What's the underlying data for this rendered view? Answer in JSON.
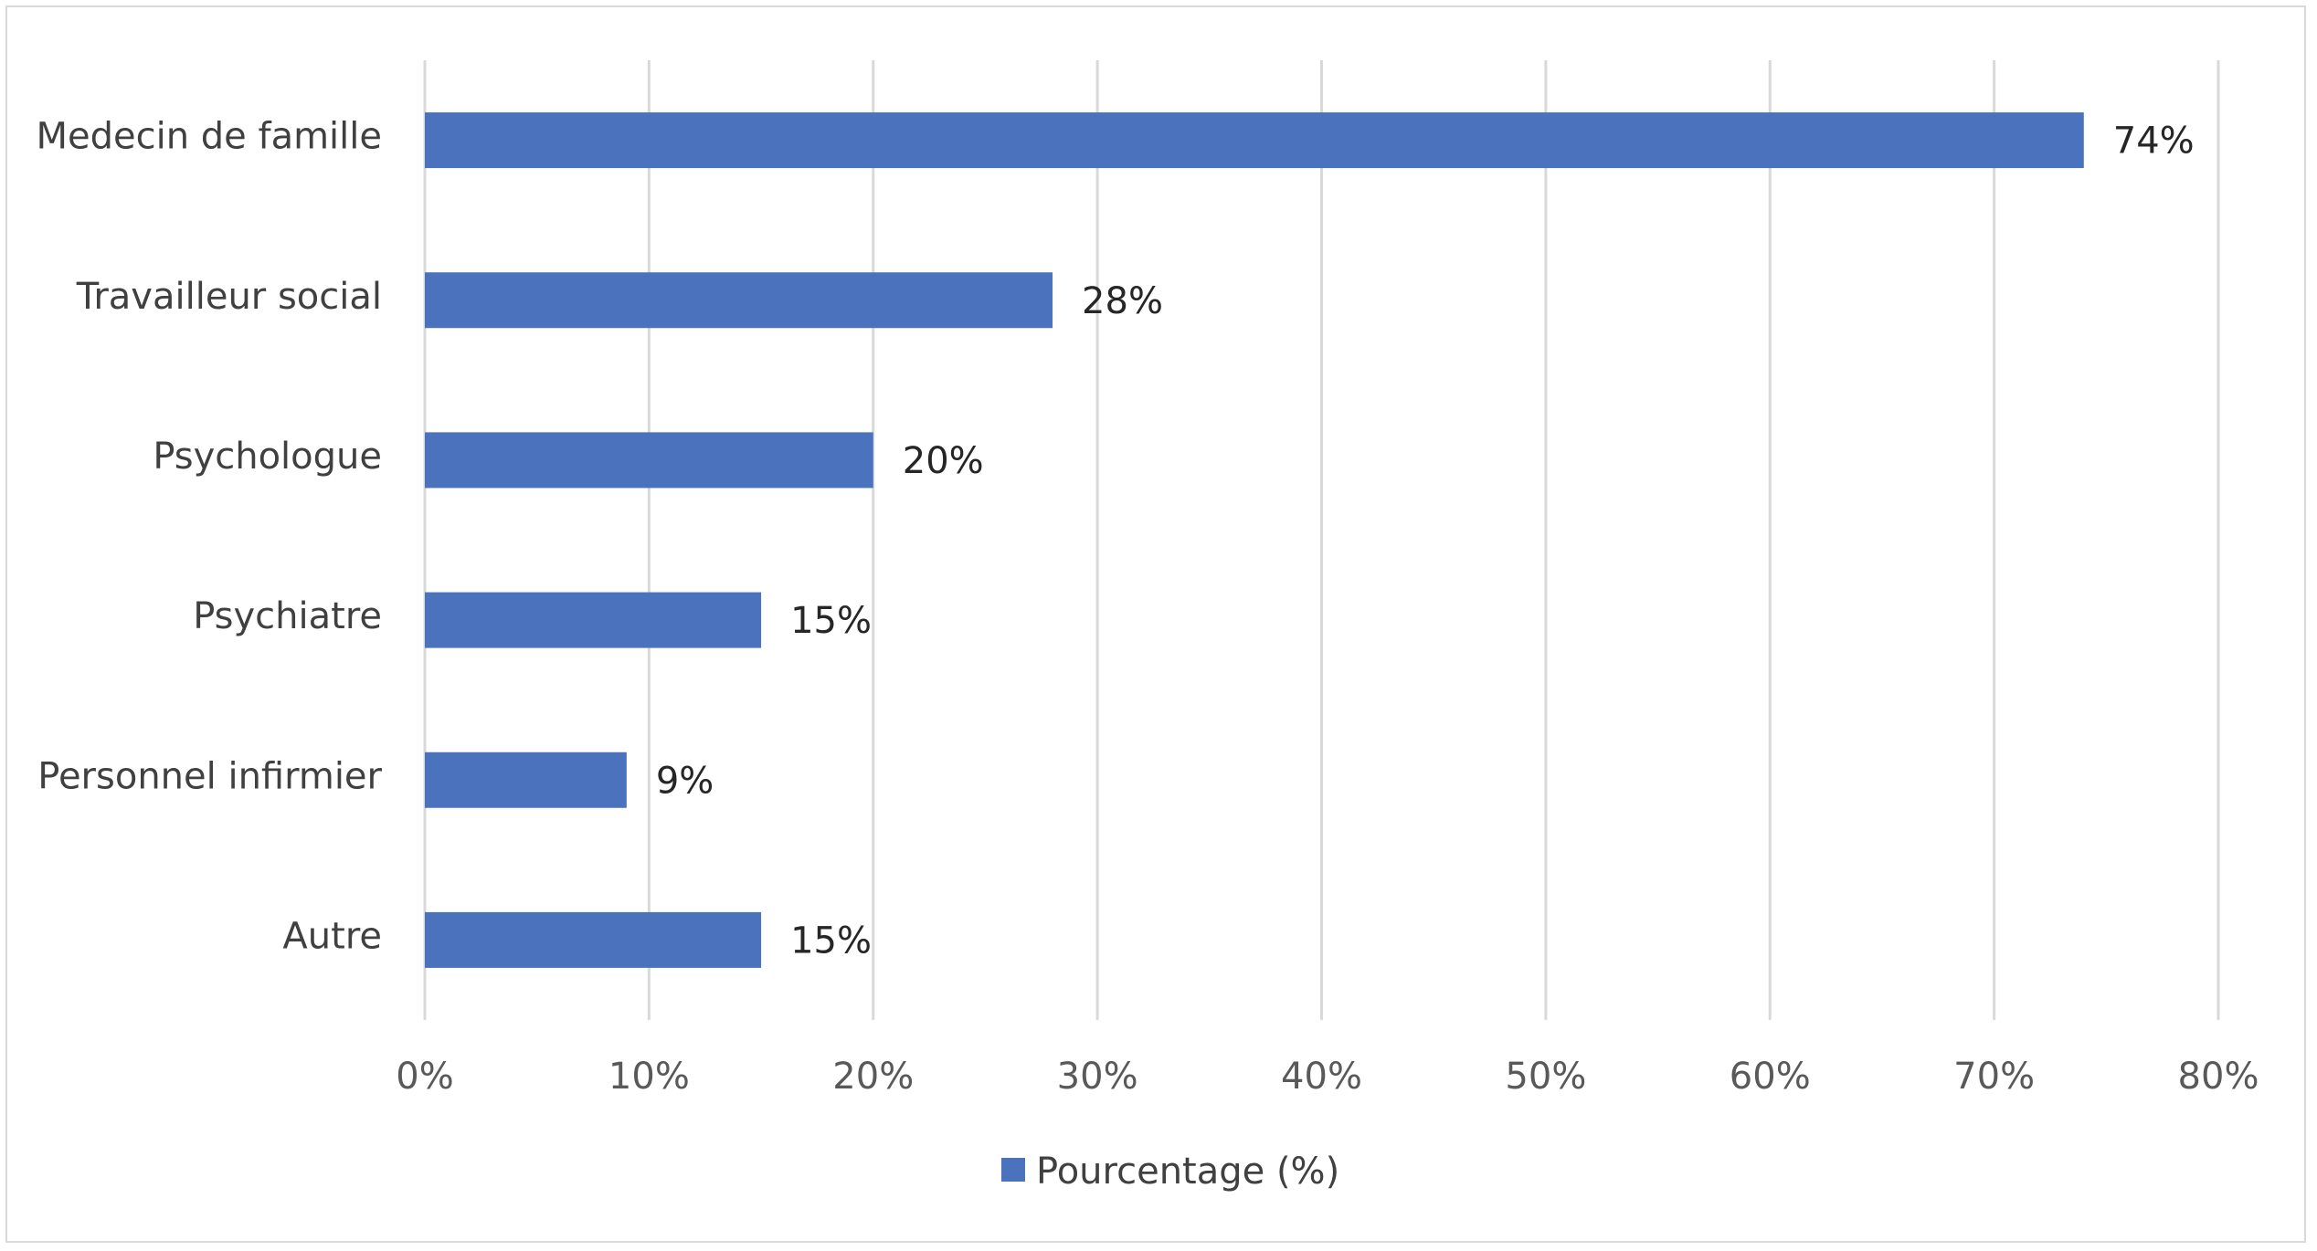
{
  "chart_data": {
    "type": "bar",
    "orientation": "horizontal",
    "title": "",
    "xlabel": "",
    "ylabel": "",
    "categories": [
      "Medecin de famille",
      "Travailleur social",
      "Psychologue",
      "Psychiatre",
      "Personnel infirmier",
      "Autre"
    ],
    "series": [
      {
        "name": "Pourcentage (%)",
        "values": [
          74,
          28,
          20,
          15,
          9,
          15
        ],
        "labels": [
          "74%",
          "28%",
          "20%",
          "15%",
          "9%",
          "15%"
        ],
        "color": "#4a72bd"
      }
    ],
    "xlim": [
      0,
      80
    ],
    "ticks": [
      0,
      10,
      20,
      30,
      40,
      50,
      60,
      70,
      80
    ],
    "tick_labels": [
      "0%",
      "10%",
      "20%",
      "30%",
      "40%",
      "50%",
      "60%",
      "70%",
      "80%"
    ],
    "grid": true,
    "legend": "bottom",
    "grid_color": "#d9d9d9",
    "border_color": "#d9d9d9"
  }
}
